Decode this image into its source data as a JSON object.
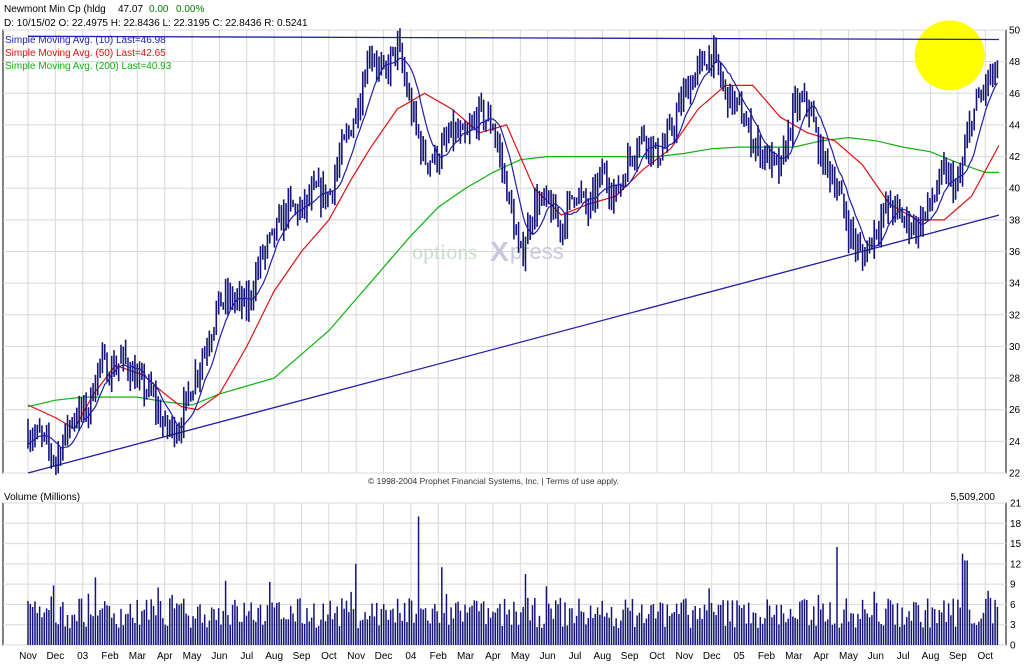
{
  "header": {
    "symbol": "Newmont Min Cp (hldg",
    "last": "47.07",
    "change": "0.00",
    "change_pct": "0.00%",
    "ohlc": "D: 10/15/02  O: 22.4975  H: 22.8436  L: 22.3195  C: 22.8436  R: 0.5241"
  },
  "legend": [
    {
      "label": "Simple Moving Avg. (10) Last=46.98",
      "color": "#1f1fa8"
    },
    {
      "label": "Simple Moving Avg. (50) Last=42.65",
      "color": "#e01010"
    },
    {
      "label": "Simple Moving Avg. (200) Last=40.93",
      "color": "#10b010"
    }
  ],
  "watermark": {
    "part1": "options",
    "part2": "X",
    "part3": "press"
  },
  "copyright": "© 1998-2004 Prophet Financial Systems, Inc. | Terms of use apply.",
  "volume_panel": {
    "title": "Volume (Millions)",
    "last": "5,509,200"
  },
  "chart_data": [
    {
      "type": "line",
      "price_axis": {
        "ylim": [
          22,
          50
        ],
        "ticks": [
          22,
          24,
          26,
          28,
          30,
          32,
          34,
          36,
          38,
          40,
          42,
          44,
          46,
          48,
          50
        ]
      },
      "x_ticks": [
        "Nov",
        "Dec",
        "03",
        "Feb",
        "Mar",
        "Apr",
        "May",
        "Jun",
        "Jul",
        "Aug",
        "Sep",
        "Oct",
        "Nov",
        "Dec",
        "04",
        "Feb",
        "Mar",
        "Apr",
        "May",
        "Jun",
        "Jul",
        "Aug",
        "Sep",
        "Oct",
        "Nov",
        "Dec",
        "05",
        "Feb",
        "Mar",
        "Apr",
        "May",
        "Jun",
        "Jul",
        "Aug",
        "Sep",
        "Oct"
      ],
      "price_points": [
        [
          0,
          24.6
        ],
        [
          0.5,
          24.2
        ],
        [
          1,
          22.8
        ],
        [
          1.6,
          25.5
        ],
        [
          2.2,
          26.0
        ],
        [
          2.6,
          29.0
        ],
        [
          3.0,
          28.5
        ],
        [
          3.5,
          29.2
        ],
        [
          4.0,
          27.8
        ],
        [
          4.5,
          27.0
        ],
        [
          5.0,
          24.8
        ],
        [
          5.5,
          24.9
        ],
        [
          6.0,
          27.6
        ],
        [
          6.5,
          30.0
        ],
        [
          7.0,
          32.8
        ],
        [
          7.5,
          33.0
        ],
        [
          8.0,
          32.5
        ],
        [
          8.5,
          35.5
        ],
        [
          9.0,
          37.0
        ],
        [
          9.5,
          38.8
        ],
        [
          10.0,
          38.5
        ],
        [
          10.5,
          39.8
        ],
        [
          11.0,
          39.5
        ],
        [
          11.5,
          42.5
        ],
        [
          12.0,
          44.8
        ],
        [
          12.5,
          48.8
        ],
        [
          13.0,
          47.0
        ],
        [
          13.5,
          49.0
        ],
        [
          14.0,
          45.0
        ],
        [
          14.5,
          41.8
        ],
        [
          15.0,
          42.0
        ],
        [
          15.5,
          43.5
        ],
        [
          16.0,
          43.0
        ],
        [
          16.5,
          44.8
        ],
        [
          17.0,
          44.0
        ],
        [
          17.5,
          40.0
        ],
        [
          18.0,
          35.5
        ],
        [
          18.5,
          39.0
        ],
        [
          19.0,
          39.0
        ],
        [
          19.5,
          37.5
        ],
        [
          20.0,
          40.0
        ],
        [
          20.5,
          38.5
        ],
        [
          21.0,
          41.0
        ],
        [
          21.5,
          39.5
        ],
        [
          22.0,
          42.0
        ],
        [
          22.5,
          43.5
        ],
        [
          23.0,
          42.0
        ],
        [
          23.5,
          43.5
        ],
        [
          24.0,
          46.0
        ],
        [
          24.5,
          47.5
        ],
        [
          25.0,
          48.5
        ],
        [
          25.5,
          46.0
        ],
        [
          26.0,
          45.0
        ],
        [
          26.5,
          43.0
        ],
        [
          27.0,
          42.0
        ],
        [
          27.5,
          41.0
        ],
        [
          28.0,
          45.0
        ],
        [
          28.5,
          45.5
        ],
        [
          29.0,
          42.0
        ],
        [
          29.5,
          40.5
        ],
        [
          30.0,
          37.5
        ],
        [
          30.5,
          35.5
        ],
        [
          31.0,
          37.5
        ],
        [
          31.5,
          39.0
        ],
        [
          32.0,
          38.0
        ],
        [
          32.5,
          37.5
        ],
        [
          33.0,
          39.0
        ],
        [
          33.5,
          41.0
        ],
        [
          34.0,
          40.0
        ],
        [
          34.5,
          44.5
        ],
        [
          35.0,
          46.5
        ],
        [
          35.5,
          47.5
        ]
      ],
      "sma10_last": 46.98,
      "sma50_points": [
        [
          0,
          26.3
        ],
        [
          1,
          25.5
        ],
        [
          1.7,
          24.8
        ],
        [
          2.4,
          27.0
        ],
        [
          3.2,
          28.8
        ],
        [
          4.2,
          28.2
        ],
        [
          5.0,
          27.0
        ],
        [
          5.6,
          26.2
        ],
        [
          6.2,
          26.0
        ],
        [
          7.0,
          27.0
        ],
        [
          8.0,
          30.0
        ],
        [
          9.0,
          33.5
        ],
        [
          10.0,
          36.0
        ],
        [
          11.0,
          38.0
        ],
        [
          11.8,
          40.5
        ],
        [
          12.5,
          42.5
        ],
        [
          13.5,
          45.0
        ],
        [
          14.5,
          46.0
        ],
        [
          15.5,
          45.0
        ],
        [
          16.5,
          43.5
        ],
        [
          17.5,
          44.0
        ],
        [
          18.5,
          40.0
        ],
        [
          19.5,
          38.3
        ],
        [
          20.5,
          39.0
        ],
        [
          21.5,
          39.5
        ],
        [
          22.5,
          41.2
        ],
        [
          23.5,
          42.5
        ],
        [
          24.5,
          45.0
        ],
        [
          25.5,
          46.5
        ],
        [
          26.5,
          46.5
        ],
        [
          27.5,
          44.5
        ],
        [
          28.5,
          43.5
        ],
        [
          29.5,
          43.0
        ],
        [
          30.5,
          41.5
        ],
        [
          31.5,
          39.0
        ],
        [
          32.5,
          38.0
        ],
        [
          33.5,
          38.0
        ],
        [
          34.5,
          39.5
        ],
        [
          35.5,
          42.7
        ]
      ],
      "sma50_last": 42.65,
      "sma200_points": [
        [
          0,
          26.2
        ],
        [
          1,
          26.6
        ],
        [
          2,
          26.8
        ],
        [
          3,
          26.8
        ],
        [
          4,
          26.8
        ],
        [
          5,
          26.5
        ],
        [
          6,
          26.3
        ],
        [
          7,
          27.0
        ],
        [
          8,
          27.5
        ],
        [
          9,
          28.0
        ],
        [
          10,
          29.5
        ],
        [
          11,
          31.0
        ],
        [
          12,
          33.0
        ],
        [
          13,
          35.0
        ],
        [
          14,
          37.0
        ],
        [
          15,
          38.8
        ],
        [
          16,
          40.0
        ],
        [
          17,
          41.0
        ],
        [
          18,
          41.8
        ],
        [
          19,
          42.0
        ],
        [
          20,
          42.0
        ],
        [
          21,
          42.0
        ],
        [
          22,
          42.0
        ],
        [
          23,
          42.0
        ],
        [
          24,
          42.2
        ],
        [
          25,
          42.5
        ],
        [
          26,
          42.6
        ],
        [
          27,
          42.6
        ],
        [
          28,
          42.6
        ],
        [
          29,
          43.0
        ],
        [
          30,
          43.2
        ],
        [
          31,
          43.0
        ],
        [
          32,
          42.6
        ],
        [
          33,
          42.3
        ],
        [
          34,
          41.6
        ],
        [
          35,
          41.0
        ],
        [
          35.5,
          41.0
        ]
      ],
      "sma200_last": 40.93,
      "trendlines": [
        {
          "from": [
            0,
            22.0
          ],
          "to": [
            35.5,
            38.3
          ],
          "color": "#1f1fa8"
        },
        {
          "from": [
            0,
            49.6
          ],
          "to": [
            35.5,
            49.4
          ],
          "color": "#1f1fa8"
        }
      ],
      "highlight": {
        "center": [
          33.7,
          48.4
        ],
        "color": "#ffff00"
      },
      "grid": true
    },
    {
      "type": "bar",
      "title": "Volume (Millions)",
      "ylim": [
        0,
        21
      ],
      "ticks": [
        0,
        3,
        6,
        9,
        12,
        15,
        18,
        21
      ],
      "spikes": [
        {
          "x": 14.3,
          "value": 19.0
        },
        {
          "x": 12.0,
          "value": 12.0
        },
        {
          "x": 15.1,
          "value": 11.5
        },
        {
          "x": 29.6,
          "value": 14.5
        },
        {
          "x": 34.2,
          "value": 13.5
        },
        {
          "x": 34.3,
          "value": 12.5
        },
        {
          "x": 18.2,
          "value": 10.5
        },
        {
          "x": 7.2,
          "value": 9.5
        },
        {
          "x": 2.5,
          "value": 10.0
        }
      ],
      "last_value": 5.5092,
      "grid": true
    }
  ]
}
